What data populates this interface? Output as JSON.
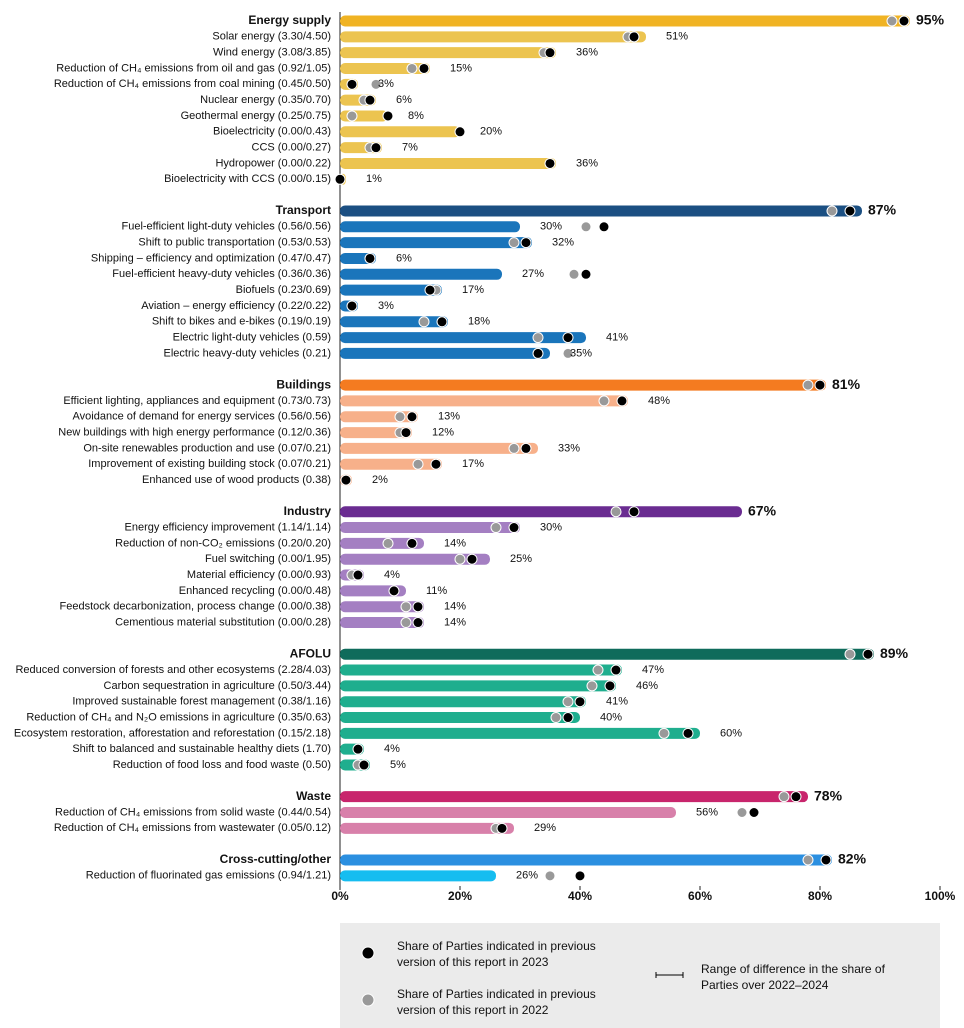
{
  "chart_data": {
    "type": "bar",
    "orientation": "horizontal",
    "xlim": [
      0,
      100
    ],
    "xticks": [
      {
        "value": 0,
        "label": "0%"
      },
      {
        "value": 20,
        "label": "20%"
      },
      {
        "value": 40,
        "label": "40%"
      },
      {
        "value": 60,
        "label": "60%"
      },
      {
        "value": 80,
        "label": "80%"
      },
      {
        "value": 100,
        "label": "100%"
      }
    ],
    "legend": [
      {
        "name": "Share of Parties indicated in previous version of this report in 2023",
        "color": "#000000"
      },
      {
        "name": "Share of Parties indicated in previous version of this report in 2022",
        "color": "#999999"
      },
      {
        "name": "Range of difference in the share of Parties over 2022–2024",
        "color": "#000000"
      }
    ],
    "groups": [
      {
        "name": "Energy supply",
        "color": "#f0b323",
        "item_color": "#ecc450",
        "value": 95,
        "value_label": "95%",
        "prev_2023": 94,
        "prev_2022": 92,
        "items": [
          {
            "label": "Solar energy (3.30/4.50)",
            "value": 51,
            "value_label": "51%",
            "prev_2023": 49,
            "prev_2022": 48
          },
          {
            "label": "Wind energy (3.08/3.85)",
            "value": 36,
            "value_label": "36%",
            "prev_2023": 35,
            "prev_2022": 34
          },
          {
            "label": "Reduction of CH₄ emissions from oil and gas (0.92/1.05)",
            "value": 15,
            "value_label": "15%",
            "prev_2023": 14,
            "prev_2022": 12
          },
          {
            "label": "Reduction of CH₄ emissions from coal mining (0.45/0.50)",
            "value": 3,
            "value_label": "3%",
            "prev_2023": 2,
            "prev_2022": 6
          },
          {
            "label": "Nuclear energy (0.35/0.70)",
            "value": 6,
            "value_label": "6%",
            "prev_2023": 5,
            "prev_2022": 4
          },
          {
            "label": "Geothermal energy (0.25/0.75)",
            "value": 8,
            "value_label": "8%",
            "prev_2023": 8,
            "prev_2022": 2
          },
          {
            "label": "Bioelectricity (0.00/0.43)",
            "value": 20,
            "value_label": "20%",
            "prev_2023": 20,
            "prev_2022": null
          },
          {
            "label": "CCS (0.00/0.27)",
            "value": 7,
            "value_label": "7%",
            "prev_2023": 6,
            "prev_2022": 5
          },
          {
            "label": "Hydropower (0.00/0.22)",
            "value": 36,
            "value_label": "36%",
            "prev_2023": 35,
            "prev_2022": null
          },
          {
            "label": "Bioelectricity with CCS (0.00/0.15)",
            "value": 1,
            "value_label": "1%",
            "prev_2023": 0,
            "prev_2022": null
          }
        ]
      },
      {
        "name": "Transport",
        "color": "#1b4f82",
        "item_color": "#1a75bb",
        "value": 87,
        "value_label": "87%",
        "prev_2023": 85,
        "prev_2022": 82,
        "items": [
          {
            "label": "Fuel-efficient light-duty vehicles (0.56/0.56)",
            "value": 30,
            "value_label": "30%",
            "prev_2023": 44,
            "prev_2022": 41
          },
          {
            "label": "Shift to public transportation (0.53/0.53)",
            "value": 32,
            "value_label": "32%",
            "prev_2023": 31,
            "prev_2022": 29
          },
          {
            "label": "Shipping – efficiency and optimization (0.47/0.47)",
            "value": 6,
            "value_label": "6%",
            "prev_2023": 5,
            "prev_2022": null
          },
          {
            "label": "Fuel-efficient heavy-duty vehicles (0.36/0.36)",
            "value": 27,
            "value_label": "27%",
            "prev_2023": 41,
            "prev_2022": 39
          },
          {
            "label": "Biofuels (0.23/0.69)",
            "value": 17,
            "value_label": "17%",
            "prev_2023": 15,
            "prev_2022": 16
          },
          {
            "label": "Aviation – energy efficiency (0.22/0.22)",
            "value": 3,
            "value_label": "3%",
            "prev_2023": 2,
            "prev_2022": null
          },
          {
            "label": "Shift to bikes and e-bikes (0.19/0.19)",
            "value": 18,
            "value_label": "18%",
            "prev_2023": 17,
            "prev_2022": 14
          },
          {
            "label": "Electric light-duty vehicles (0.59)",
            "value": 41,
            "value_label": "41%",
            "prev_2023": 38,
            "prev_2022": 33
          },
          {
            "label": "Electric heavy-duty vehicles (0.21)",
            "value": 35,
            "value_label": "35%",
            "prev_2023": 33,
            "prev_2022": 38
          }
        ]
      },
      {
        "name": "Buildings",
        "color": "#f47b20",
        "item_color": "#f7b08a",
        "value": 81,
        "value_label": "81%",
        "prev_2023": 80,
        "prev_2022": 78,
        "items": [
          {
            "label": "Efficient lighting, appliances and equipment (0.73/0.73)",
            "value": 48,
            "value_label": "48%",
            "prev_2023": 47,
            "prev_2022": 44
          },
          {
            "label": "Avoidance of demand for energy services (0.56/0.56)",
            "value": 13,
            "value_label": "13%",
            "prev_2023": 12,
            "prev_2022": 10
          },
          {
            "label": "New buildings with high energy performance (0.12/0.36)",
            "value": 12,
            "value_label": "12%",
            "prev_2023": 11,
            "prev_2022": 10
          },
          {
            "label": "On-site renewables production and use (0.07/0.21)",
            "value": 33,
            "value_label": "33%",
            "prev_2023": 31,
            "prev_2022": 29
          },
          {
            "label": "Improvement of existing building stock (0.07/0.21)",
            "value": 17,
            "value_label": "17%",
            "prev_2023": 16,
            "prev_2022": 13
          },
          {
            "label": "Enhanced use of wood products (0.38)",
            "value": 2,
            "value_label": "2%",
            "prev_2023": 1,
            "prev_2022": null
          }
        ]
      },
      {
        "name": "Industry",
        "color": "#6a2c91",
        "item_color": "#a47fc2",
        "value": 67,
        "value_label": "67%",
        "prev_2023": 49,
        "prev_2022": 46,
        "items": [
          {
            "label": "Energy efficiency improvement (1.14/1.14)",
            "value": 30,
            "value_label": "30%",
            "prev_2023": 29,
            "prev_2022": 26
          },
          {
            "label": "Reduction of non-CO₂ emissions (0.20/0.20)",
            "value": 14,
            "value_label": "14%",
            "prev_2023": 12,
            "prev_2022": 8
          },
          {
            "label": "Fuel switching (0.00/1.95)",
            "value": 25,
            "value_label": "25%",
            "prev_2023": 22,
            "prev_2022": 20
          },
          {
            "label": "Material efficiency (0.00/0.93)",
            "value": 4,
            "value_label": "4%",
            "prev_2023": 3,
            "prev_2022": 2
          },
          {
            "label": "Enhanced recycling (0.00/0.48)",
            "value": 11,
            "value_label": "11%",
            "prev_2023": 9,
            "prev_2022": null
          },
          {
            "label": "Feedstock decarbonization, process change (0.00/0.38)",
            "value": 14,
            "value_label": "14%",
            "prev_2023": 13,
            "prev_2022": 11
          },
          {
            "label": "Cementious material substitution (0.00/0.28)",
            "value": 14,
            "value_label": "14%",
            "prev_2023": 13,
            "prev_2022": 11
          }
        ]
      },
      {
        "name": "AFOLU",
        "color": "#0f6b5b",
        "item_color": "#1fae8e",
        "value": 89,
        "value_label": "89%",
        "prev_2023": 88,
        "prev_2022": 85,
        "items": [
          {
            "label": "Reduced conversion of forests and other ecosystems (2.28/4.03)",
            "value": 47,
            "value_label": "47%",
            "prev_2023": 46,
            "prev_2022": 43
          },
          {
            "label": "Carbon sequestration in agriculture (0.50/3.44)",
            "value": 46,
            "value_label": "46%",
            "prev_2023": 45,
            "prev_2022": 42
          },
          {
            "label": "Improved sustainable forest management (0.38/1.16)",
            "value": 41,
            "value_label": "41%",
            "prev_2023": 40,
            "prev_2022": 38
          },
          {
            "label": "Reduction of CH₄ and N₂O emissions in agriculture (0.35/0.63)",
            "value": 40,
            "value_label": "40%",
            "prev_2023": 38,
            "prev_2022": 36
          },
          {
            "label": "Ecosystem restoration, afforestation and reforestation (0.15/2.18)",
            "value": 60,
            "value_label": "60%",
            "prev_2023": 58,
            "prev_2022": 54
          },
          {
            "label": "Shift to balanced and sustainable healthy diets (1.70)",
            "value": 4,
            "value_label": "4%",
            "prev_2023": 3,
            "prev_2022": null
          },
          {
            "label": "Reduction of food loss and food waste (0.50)",
            "value": 5,
            "value_label": "5%",
            "prev_2023": 4,
            "prev_2022": 3
          }
        ]
      },
      {
        "name": "Waste",
        "color": "#c8256c",
        "item_color": "#d880aa",
        "value": 78,
        "value_label": "78%",
        "prev_2023": 76,
        "prev_2022": 74,
        "items": [
          {
            "label": "Reduction of CH₄ emissions from solid waste (0.44/0.54)",
            "value": 56,
            "value_label": "56%",
            "prev_2023": 69,
            "prev_2022": 67
          },
          {
            "label": "Reduction of CH₄ emissions from wastewater (0.05/0.12)",
            "value": 29,
            "value_label": "29%",
            "prev_2023": 27,
            "prev_2022": 26
          }
        ]
      },
      {
        "name": "Cross-cutting/other",
        "color": "#2b8fe0",
        "item_color": "#16bdf0",
        "value": 82,
        "value_label": "82%",
        "prev_2023": 81,
        "prev_2022": 78,
        "items": [
          {
            "label": "Reduction of fluorinated gas emissions (0.94/1.21)",
            "value": 26,
            "value_label": "26%",
            "prev_2023": 40,
            "prev_2022": 35
          }
        ]
      }
    ]
  }
}
